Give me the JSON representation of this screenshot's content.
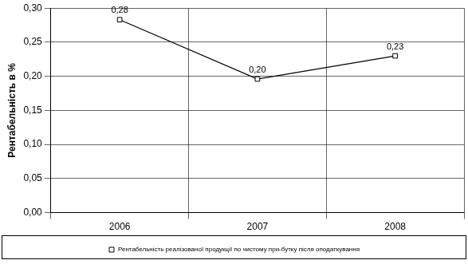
{
  "chart_data": {
    "type": "line",
    "y_label": "Рентабельність в %",
    "categories": [
      "2006",
      "2007",
      "2008"
    ],
    "series": [
      {
        "name": "Рентабельність реалізованої продукції по чистому при-бутку після оподаткування",
        "color": "#000000",
        "marker": "square",
        "line_style": "solid",
        "values": [
          0.283,
          0.196,
          0.23
        ],
        "value_labels": [
          "0,28",
          "0,20",
          "0,23"
        ]
      }
    ],
    "ylim": [
      0,
      0.3
    ],
    "yticks": [
      {
        "value": 0,
        "label": "0,00"
      },
      {
        "value": 0.05,
        "label": "0,05"
      },
      {
        "value": 0.1,
        "label": "0,10"
      },
      {
        "value": 0.15,
        "label": "0,15"
      },
      {
        "value": 0.2,
        "label": "0,20"
      },
      {
        "value": 0.25,
        "label": "0,25"
      },
      {
        "value": 0.3,
        "label": "0,30"
      }
    ],
    "grid": true,
    "legend": "bottom",
    "data_labels": true
  }
}
